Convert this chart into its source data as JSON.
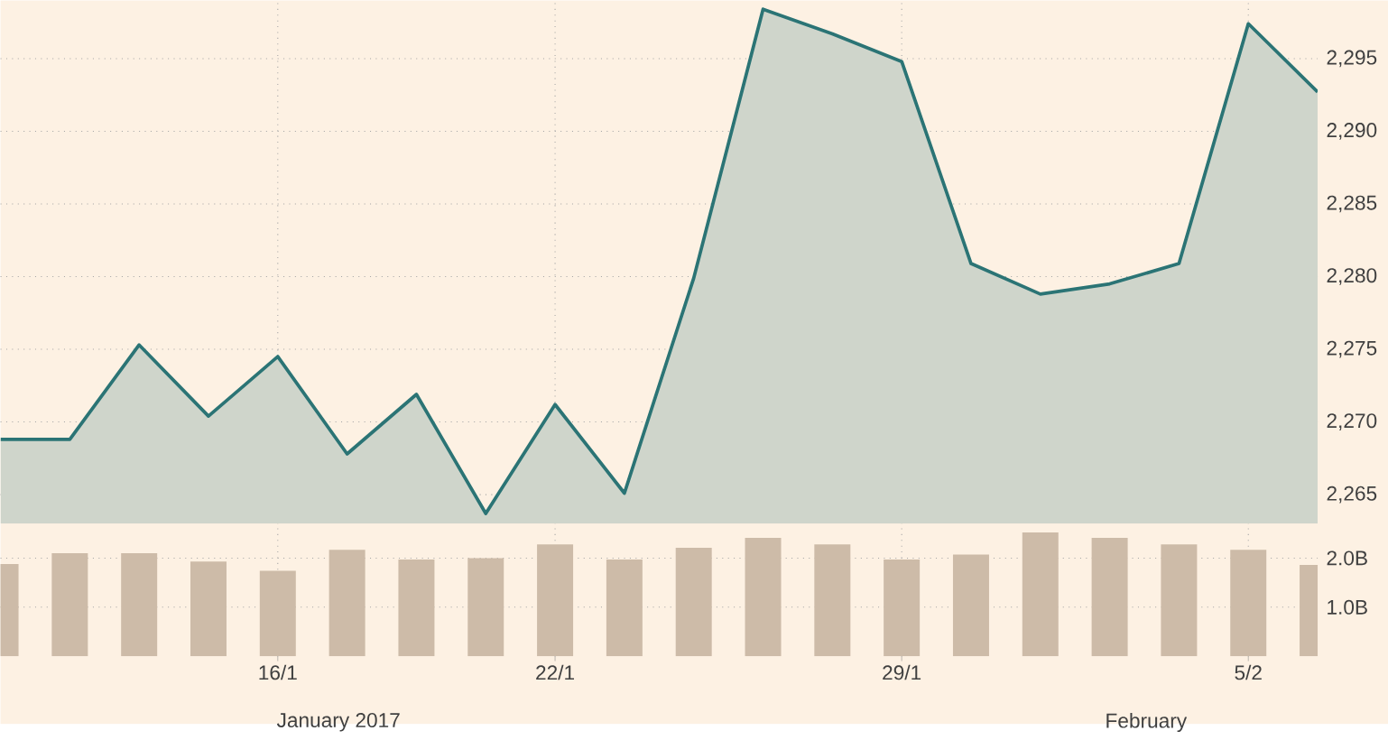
{
  "chart_data": [
    {
      "type": "area",
      "categories": [
        null,
        null,
        null,
        null,
        null,
        null,
        null,
        null,
        null,
        null,
        null,
        null,
        null,
        null,
        null,
        null,
        null,
        null,
        null,
        null
      ],
      "series": [
        {
          "color": "#2b7475",
          "values": [
            2268.8,
            2268.8,
            2275.3,
            2270.4,
            2274.5,
            2267.8,
            2271.9,
            2263.7,
            2271.2,
            2265.1,
            2279.9,
            2298.4,
            2296.7,
            2294.8,
            2280.9,
            2278.8,
            2279.5,
            2280.9,
            2297.4,
            2292.7
          ]
        }
      ],
      "ylim": [
        2263,
        2299
      ],
      "yticks": [
        {
          "value": 2265,
          "label": "2,265"
        },
        {
          "value": 2270,
          "label": "2,270"
        },
        {
          "value": 2275,
          "label": "2,275"
        },
        {
          "value": 2280,
          "label": "2,280"
        },
        {
          "value": 2285,
          "label": "2,285"
        },
        {
          "value": 2290,
          "label": "2,290"
        },
        {
          "value": 2295,
          "label": "2,295"
        }
      ],
      "grid": true,
      "tick_labels": "y"
    },
    {
      "type": "bar",
      "categories": [
        null,
        null,
        null,
        null,
        "16/1",
        null,
        null,
        null,
        "22/1",
        null,
        null,
        null,
        null,
        "29/1",
        null,
        null,
        null,
        null,
        "5/2",
        null
      ],
      "values": [
        1.88,
        2.1,
        2.1,
        1.93,
        1.74,
        2.17,
        1.97,
        2.0,
        2.28,
        1.97,
        2.21,
        2.41,
        2.28,
        1.97,
        2.07,
        2.52,
        2.41,
        2.28,
        2.17,
        1.86
      ],
      "color": "#cdbba8",
      "ylim": [
        0,
        2.7
      ],
      "yticks": [
        {
          "value": 1,
          "label": "1.0B"
        },
        {
          "value": 2,
          "label": "2.0B"
        }
      ],
      "grid": true,
      "annotations": [
        "January 2017",
        "February"
      ]
    }
  ]
}
